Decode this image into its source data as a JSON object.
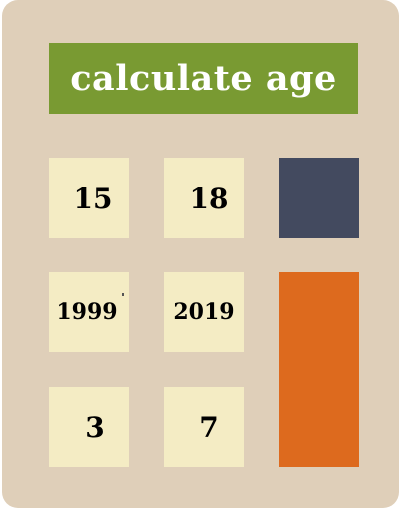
{
  "display": {
    "text": "calculate age"
  },
  "keys": {
    "row1": [
      "15",
      "18"
    ],
    "row2": [
      "1999",
      "2019"
    ],
    "row3": [
      "3",
      "7"
    ]
  },
  "colors": {
    "body": "#dfcfb9",
    "display": "#799a32",
    "key": "#f4ecc4",
    "dark_key": "#434a5f",
    "orange_key": "#dd6a1e"
  }
}
